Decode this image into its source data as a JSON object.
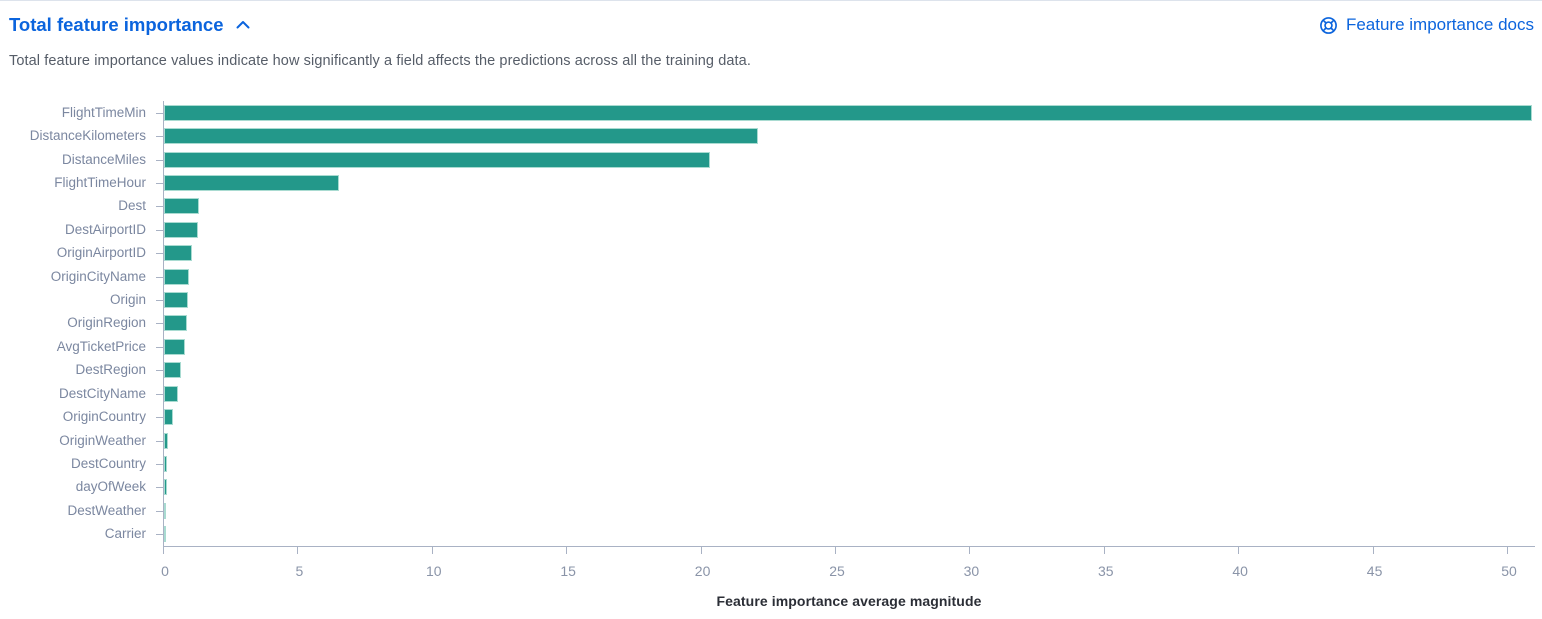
{
  "panel": {
    "title": "Total feature importance",
    "description": "Total feature importance values indicate how significantly a field affects the predictions across all the training data.",
    "docs_link_label": "Feature importance docs"
  },
  "icons": {
    "collapse": "chevron-up-icon",
    "docs": "life-ring-help-icon"
  },
  "colors": {
    "link": "#0b64dd",
    "bar": "#23988a",
    "bar_border": "#a9dbd1",
    "axis_line": "#a9b2c4",
    "category_label": "#7b87a0",
    "tick_label": "#8a94a8",
    "description_text": "#565d68",
    "axis_title": "#2b2e36"
  },
  "chart_data": {
    "type": "bar",
    "orientation": "horizontal",
    "title": "Total feature importance",
    "xlabel": "Feature importance average magnitude",
    "ylabel": "",
    "xlim": [
      0,
      50
    ],
    "xticks": [
      0,
      5,
      10,
      15,
      20,
      25,
      30,
      35,
      40,
      45,
      50
    ],
    "grid": false,
    "legend": "none",
    "categories": [
      "FlightTimeMin",
      "DistanceKilometers",
      "DistanceMiles",
      "FlightTimeHour",
      "Dest",
      "DestAirportID",
      "OriginAirportID",
      "OriginCityName",
      "Origin",
      "OriginRegion",
      "AvgTicketPrice",
      "DestRegion",
      "DestCityName",
      "OriginCountry",
      "OriginWeather",
      "DestCountry",
      "dayOfWeek",
      "DestWeather",
      "Carrier"
    ],
    "values": [
      50.9,
      22.1,
      20.3,
      6.5,
      1.3,
      1.25,
      1.05,
      0.93,
      0.88,
      0.85,
      0.78,
      0.62,
      0.52,
      0.34,
      0.14,
      0.13,
      0.1,
      0.09,
      0.03
    ]
  }
}
